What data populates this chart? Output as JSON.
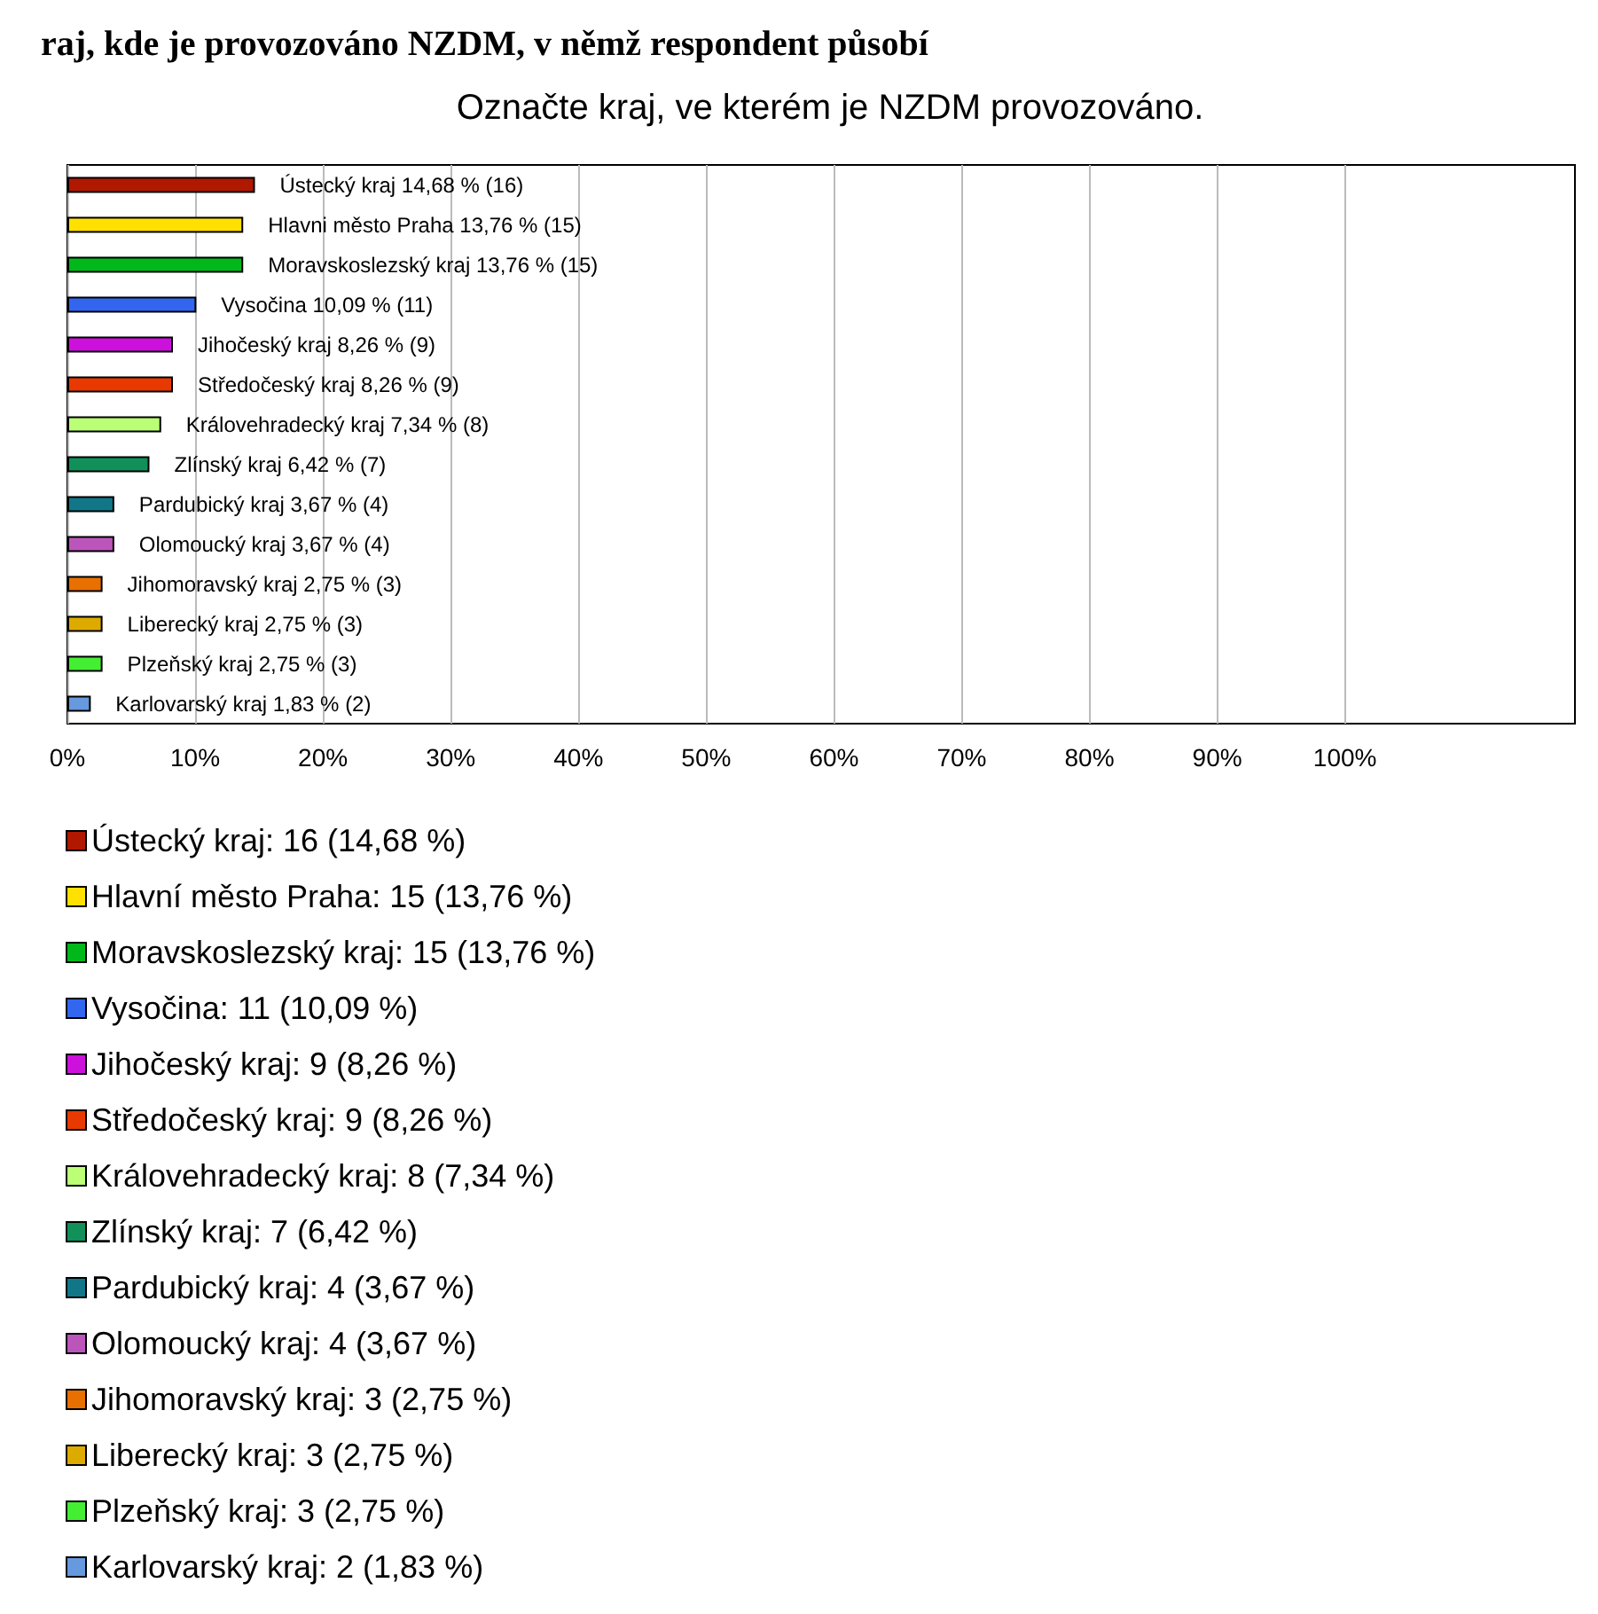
{
  "chart_data": {
    "type": "bar",
    "orientation": "horizontal",
    "stacked": true,
    "title": "raj, kde je provozováno NZDM, v němž respondent působí",
    "subtitle": "Označte kraj, ve kterém je NZDM provozováno.",
    "categories": [
      "Ústecký kraj",
      "Hlavni město Praha",
      "Moravskoslezský kraj",
      "Vysočina",
      "Jihočeský kraj",
      "Středočeský kraj",
      "Královehradecký kraj",
      "Zlínský kraj",
      "Pardubický kraj",
      "Olomoucký kraj",
      "Jihomoravský kraj",
      "Liberecký kraj",
      "Plzeňský kraj",
      "Karlovarský kraj"
    ],
    "series": [
      {
        "name": "Ústecký kraj: 16 (14,68 %)",
        "color": "#b01800",
        "values": [
          14.68,
          null,
          null,
          null,
          null,
          null,
          null,
          null,
          null,
          null,
          null,
          null,
          null,
          null
        ],
        "value_labels": [
          "14,68 % (16)",
          null,
          null,
          null,
          null,
          null,
          null,
          null,
          null,
          null,
          null,
          null,
          null,
          null
        ]
      },
      {
        "name": "Hlavní město Praha: 15 (13,76 %)",
        "color": "#ffe000",
        "values": [
          null,
          13.76,
          null,
          null,
          null,
          null,
          null,
          null,
          null,
          null,
          null,
          null,
          null,
          null
        ],
        "value_labels": [
          null,
          "13,76 % (15)",
          null,
          null,
          null,
          null,
          null,
          null,
          null,
          null,
          null,
          null,
          null,
          null
        ]
      },
      {
        "name": "Moravskoslezský kraj: 15 (13,76 %)",
        "color": "#00b81a",
        "values": [
          null,
          null,
          13.76,
          null,
          null,
          null,
          null,
          null,
          null,
          null,
          null,
          null,
          null,
          null
        ],
        "value_labels": [
          null,
          null,
          "13,76 % (15)",
          null,
          null,
          null,
          null,
          null,
          null,
          null,
          null,
          null,
          null,
          null
        ]
      },
      {
        "name": "Vysočina: 11 (10,09 %)",
        "color": "#3366ee",
        "values": [
          null,
          null,
          null,
          10.09,
          null,
          null,
          null,
          null,
          null,
          null,
          null,
          null,
          null,
          null
        ],
        "value_labels": [
          null,
          null,
          null,
          "10,09 % (11)",
          null,
          null,
          null,
          null,
          null,
          null,
          null,
          null,
          null,
          null
        ]
      },
      {
        "name": "Jihočeský kraj: 9 (8,26 %)",
        "color": "#cc11dd",
        "values": [
          null,
          null,
          null,
          null,
          8.26,
          null,
          null,
          null,
          null,
          null,
          null,
          null,
          null,
          null
        ],
        "value_labels": [
          null,
          null,
          null,
          null,
          "8,26 % (9)",
          null,
          null,
          null,
          null,
          null,
          null,
          null,
          null,
          null
        ]
      },
      {
        "name": "Středočeský kraj: 9 (8,26 %)",
        "color": "#e83a00",
        "values": [
          null,
          null,
          null,
          null,
          null,
          8.26,
          null,
          null,
          null,
          null,
          null,
          null,
          null,
          null
        ],
        "value_labels": [
          null,
          null,
          null,
          null,
          null,
          "8,26 % (9)",
          null,
          null,
          null,
          null,
          null,
          null,
          null,
          null
        ]
      },
      {
        "name": "Královehradecký kraj: 8 (7,34 %)",
        "color": "#bbff77",
        "values": [
          null,
          null,
          null,
          null,
          null,
          null,
          7.34,
          null,
          null,
          null,
          null,
          null,
          null,
          null
        ],
        "value_labels": [
          null,
          null,
          null,
          null,
          null,
          null,
          "7,34 % (8)",
          null,
          null,
          null,
          null,
          null,
          null,
          null
        ]
      },
      {
        "name": "Zlínský kraj: 7 (6,42 %)",
        "color": "#11905a",
        "values": [
          null,
          null,
          null,
          null,
          null,
          null,
          null,
          6.42,
          null,
          null,
          null,
          null,
          null,
          null
        ],
        "value_labels": [
          null,
          null,
          null,
          null,
          null,
          null,
          null,
          "6,42 % (7)",
          null,
          null,
          null,
          null,
          null,
          null
        ]
      },
      {
        "name": "Pardubický kraj: 4 (3,67 %)",
        "color": "#117788",
        "values": [
          null,
          null,
          null,
          null,
          null,
          null,
          null,
          null,
          3.67,
          null,
          null,
          null,
          null,
          null
        ],
        "value_labels": [
          null,
          null,
          null,
          null,
          null,
          null,
          null,
          null,
          "3,67 % (4)",
          null,
          null,
          null,
          null,
          null
        ]
      },
      {
        "name": "Olomoucký kraj: 4 (3,67 %)",
        "color": "#bb55bb",
        "values": [
          null,
          null,
          null,
          null,
          null,
          null,
          null,
          null,
          null,
          3.67,
          null,
          null,
          null,
          null
        ],
        "value_labels": [
          null,
          null,
          null,
          null,
          null,
          null,
          null,
          null,
          null,
          "3,67 % (4)",
          null,
          null,
          null,
          null
        ]
      },
      {
        "name": "Jihomoravský kraj: 3 (2,75 %)",
        "color": "#e87000",
        "values": [
          null,
          null,
          null,
          null,
          null,
          null,
          null,
          null,
          null,
          null,
          2.75,
          null,
          null,
          null
        ],
        "value_labels": [
          null,
          null,
          null,
          null,
          null,
          null,
          null,
          null,
          null,
          null,
          "2,75 % (3)",
          null,
          null,
          null
        ]
      },
      {
        "name": "Liberecký kraj: 3 (2,75 %)",
        "color": "#ddaa00",
        "values": [
          null,
          null,
          null,
          null,
          null,
          null,
          null,
          null,
          null,
          null,
          null,
          2.75,
          null,
          null
        ],
        "value_labels": [
          null,
          null,
          null,
          null,
          null,
          null,
          null,
          null,
          null,
          null,
          null,
          "2,75 % (3)",
          null,
          null
        ]
      },
      {
        "name": "Plzeňský kraj: 3 (2,75 %)",
        "color": "#44ee33",
        "values": [
          null,
          null,
          null,
          null,
          null,
          null,
          null,
          null,
          null,
          null,
          null,
          null,
          2.75,
          null
        ],
        "value_labels": [
          null,
          null,
          null,
          null,
          null,
          null,
          null,
          null,
          null,
          null,
          null,
          null,
          "2,75 % (3)",
          null
        ]
      },
      {
        "name": "Karlovarský kraj: 2 (1,83 %)",
        "color": "#6699dd",
        "values": [
          null,
          null,
          null,
          null,
          null,
          null,
          null,
          null,
          null,
          null,
          null,
          null,
          null,
          1.83
        ],
        "value_labels": [
          null,
          null,
          null,
          null,
          null,
          null,
          null,
          null,
          null,
          null,
          null,
          null,
          null,
          "1,83 % (2)"
        ]
      }
    ],
    "xlim": [
      0,
      118
    ],
    "xticks": [
      {
        "value": 0,
        "label": "0%"
      },
      {
        "value": 10,
        "label": "10%"
      },
      {
        "value": 20,
        "label": "20%"
      },
      {
        "value": 30,
        "label": "30%"
      },
      {
        "value": 40,
        "label": "40%"
      },
      {
        "value": 50,
        "label": "50%"
      },
      {
        "value": 60,
        "label": "60%"
      },
      {
        "value": 70,
        "label": "70%"
      },
      {
        "value": 80,
        "label": "80%"
      },
      {
        "value": 90,
        "label": "90%"
      },
      {
        "value": 100,
        "label": "100%"
      }
    ],
    "grid": "x",
    "tick_labels": "x",
    "legend": "bottom"
  }
}
